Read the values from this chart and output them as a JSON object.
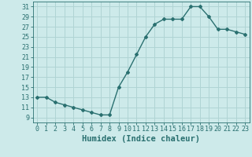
{
  "x": [
    0,
    1,
    2,
    3,
    4,
    5,
    6,
    7,
    8,
    9,
    10,
    11,
    12,
    13,
    14,
    15,
    16,
    17,
    18,
    19,
    20,
    21,
    22,
    23
  ],
  "y": [
    13,
    13,
    12,
    11.5,
    11,
    10.5,
    10,
    9.5,
    9.5,
    15,
    18,
    21.5,
    25,
    27.5,
    28.5,
    28.5,
    28.5,
    31,
    31,
    29,
    26.5,
    26.5,
    26,
    25.5
  ],
  "line_color": "#2a7070",
  "marker": "D",
  "marker_size": 2.0,
  "bg_color": "#cdeaea",
  "grid_color": "#b0d4d4",
  "xlabel": "Humidex (Indice chaleur)",
  "xlim": [
    -0.5,
    23.5
  ],
  "ylim": [
    8.0,
    32.0
  ],
  "yticks": [
    9,
    11,
    13,
    15,
    17,
    19,
    21,
    23,
    25,
    27,
    29,
    31
  ],
  "xticks": [
    0,
    1,
    2,
    3,
    4,
    5,
    6,
    7,
    8,
    9,
    10,
    11,
    12,
    13,
    14,
    15,
    16,
    17,
    18,
    19,
    20,
    21,
    22,
    23
  ],
  "tick_color": "#2a7070",
  "label_fontsize": 6,
  "xlabel_fontsize": 7.5,
  "linewidth": 1.0
}
